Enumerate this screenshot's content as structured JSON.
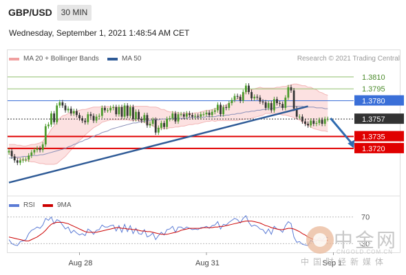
{
  "header": {
    "symbol": "GBP/USD",
    "timeframe": "30 MIN"
  },
  "datetime": "Wednesday, September 1, 2021 1:48:54 AM CET",
  "credit": "Research © 2021 Trading Central",
  "legend": {
    "bb": {
      "label": "MA 20 + Bollinger Bands",
      "color": "#f0a0a0"
    },
    "ma50": {
      "label": "MA 50",
      "color": "#2e5a96"
    },
    "rsi": {
      "label": "RSI",
      "color": "#5b7bd5"
    },
    "ma9": {
      "label": "9MA",
      "color": "#cc0000"
    }
  },
  "watermark": {
    "name": "中金网",
    "url": "CNGOLD.COM.CN",
    "sub": "中国财经新媒体"
  },
  "chart_data": [
    {
      "type": "candlestick",
      "instrument": "GBP/USD",
      "timeframe": "30 MIN",
      "ylim": [
        1.3668,
        1.3822
      ],
      "levels": [
        {
          "value": 1.381,
          "label": "1.3810",
          "style": "resistance",
          "color": "#8fbf6a"
        },
        {
          "value": 1.3795,
          "label": "1.3795",
          "style": "resistance",
          "color": "#8fbf6a"
        },
        {
          "value": 1.378,
          "label": "1.3780",
          "style": "pivot",
          "color": "#3a6fd8"
        },
        {
          "value": 1.3757,
          "label": "1.3757",
          "style": "last",
          "color": "#333333"
        },
        {
          "value": 1.3735,
          "label": "1.3735",
          "style": "support",
          "color": "#e00000"
        },
        {
          "value": 1.372,
          "label": "1.3720",
          "style": "support",
          "color": "#e00000"
        }
      ],
      "x_ticks": [
        {
          "index": 25,
          "label": "Aug 28"
        },
        {
          "index": 70,
          "label": "Aug 31"
        },
        {
          "index": 115,
          "label": "Sep 1"
        }
      ],
      "trendline": {
        "from": [
          0,
          1.3677
        ],
        "to": [
          106,
          1.3773
        ]
      },
      "forecast_arrow": {
        "from": [
          114,
          1.3758
        ],
        "to": [
          122,
          1.3722
        ]
      },
      "close": [
        1.3717,
        1.371,
        1.3705,
        1.3702,
        1.3705,
        1.3706,
        1.3706,
        1.3711,
        1.3715,
        1.3718,
        1.372,
        1.3718,
        1.3725,
        1.3748,
        1.375,
        1.3764,
        1.3753,
        1.3774,
        1.3778,
        1.3774,
        1.3768,
        1.377,
        1.3764,
        1.3767,
        1.3762,
        1.3758,
        1.3755,
        1.3753,
        1.3763,
        1.3761,
        1.3755,
        1.376,
        1.3761,
        1.3771,
        1.3768,
        1.3768,
        1.3771,
        1.3772,
        1.3763,
        1.3772,
        1.376,
        1.3774,
        1.3761,
        1.3772,
        1.3757,
        1.3766,
        1.3757,
        1.3755,
        1.3762,
        1.3749,
        1.3751,
        1.3756,
        1.374,
        1.3746,
        1.3752,
        1.3747,
        1.3757,
        1.3758,
        1.3764,
        1.3754,
        1.3763,
        1.3763,
        1.376,
        1.3764,
        1.3762,
        1.376,
        1.3761,
        1.376,
        1.3763,
        1.3763,
        1.3765,
        1.3762,
        1.3766,
        1.3768,
        1.3775,
        1.3763,
        1.3772,
        1.3771,
        1.3777,
        1.3781,
        1.3786,
        1.3785,
        1.378,
        1.3791,
        1.3799,
        1.3791,
        1.3783,
        1.3785,
        1.3784,
        1.3779,
        1.3778,
        1.3771,
        1.3777,
        1.3768,
        1.3782,
        1.3777,
        1.3776,
        1.3771,
        1.3784,
        1.3797,
        1.3793,
        1.377,
        1.376,
        1.376,
        1.3754,
        1.3751,
        1.3749,
        1.3755,
        1.3751,
        1.3752,
        1.3756,
        1.3751,
        1.3757,
        1.3757
      ],
      "ma20": [
        1.3719,
        1.3718,
        1.3717,
        1.3716,
        1.3715,
        1.3714,
        1.3714,
        1.3714,
        1.3714,
        1.3714,
        1.3714,
        1.3714,
        1.3715,
        1.3717,
        1.3719,
        1.3722,
        1.3724,
        1.3727,
        1.3731,
        1.3734,
        1.3736,
        1.3739,
        1.3742,
        1.3744,
        1.3747,
        1.3749,
        1.3751,
        1.3753,
        1.3755,
        1.3757,
        1.3759,
        1.376,
        1.3761,
        1.3763,
        1.3763,
        1.3764,
        1.3764,
        1.3764,
        1.3764,
        1.3764,
        1.3764,
        1.3764,
        1.3764,
        1.3764,
        1.3764,
        1.3764,
        1.3764,
        1.3763,
        1.3763,
        1.3762,
        1.3761,
        1.376,
        1.3759,
        1.3758,
        1.3757,
        1.3757,
        1.3756,
        1.3756,
        1.3756,
        1.3756,
        1.3756,
        1.3756,
        1.3756,
        1.3757,
        1.3757,
        1.3757,
        1.3758,
        1.3758,
        1.3759,
        1.376,
        1.3761,
        1.3761,
        1.3762,
        1.3762,
        1.3763,
        1.3764,
        1.3764,
        1.3765,
        1.3766,
        1.3767,
        1.3768,
        1.3769,
        1.3771,
        1.3772,
        1.3774,
        1.3775,
        1.3776,
        1.3777,
        1.3778,
        1.3779,
        1.3779,
        1.378,
        1.378,
        1.378,
        1.378,
        1.378,
        1.378,
        1.378,
        1.378,
        1.378,
        1.378,
        1.378,
        1.3779,
        1.3778,
        1.3776,
        1.3775,
        1.3773,
        1.3772,
        1.377,
        1.3769,
        1.3767,
        1.3766,
        1.3765,
        1.3764
      ],
      "bb_width": [
        0.0006,
        0.0007,
        0.0008,
        0.0008,
        0.0009,
        0.0009,
        0.0009,
        0.001,
        0.0011,
        0.0011,
        0.0012,
        0.0013,
        0.0014,
        0.0017,
        0.0019,
        0.0022,
        0.0024,
        0.0026,
        0.0027,
        0.0027,
        0.0026,
        0.0025,
        0.0024,
        0.0022,
        0.002,
        0.0019,
        0.0018,
        0.0016,
        0.0015,
        0.0014,
        0.0013,
        0.0012,
        0.0011,
        0.001,
        0.0009,
        0.0009,
        0.0008,
        0.0008,
        0.0008,
        0.0008,
        0.0008,
        0.0008,
        0.0008,
        0.0009,
        0.0009,
        0.0009,
        0.0009,
        0.001,
        0.001,
        0.0011,
        0.0011,
        0.0012,
        0.0013,
        0.0013,
        0.0012,
        0.0012,
        0.0011,
        0.001,
        0.001,
        0.0009,
        0.0009,
        0.0008,
        0.0008,
        0.0008,
        0.0007,
        0.0007,
        0.0007,
        0.0007,
        0.0007,
        0.0007,
        0.0007,
        0.0007,
        0.0007,
        0.0008,
        0.0008,
        0.0009,
        0.0009,
        0.001,
        0.0011,
        0.0012,
        0.0013,
        0.0014,
        0.0015,
        0.0016,
        0.0017,
        0.0018,
        0.0018,
        0.0018,
        0.0018,
        0.0018,
        0.0017,
        0.0016,
        0.0016,
        0.0016,
        0.0016,
        0.0017,
        0.0017,
        0.0018,
        0.0018,
        0.0019,
        0.002,
        0.0021,
        0.0022,
        0.0022,
        0.0023,
        0.0024,
        0.0024,
        0.0025,
        0.0025,
        0.0025,
        0.0024,
        0.0024,
        0.0023,
        0.0023
      ],
      "ma50": [
        1.3708,
        1.3708,
        1.3709,
        1.3709,
        1.3709,
        1.371,
        1.371,
        1.371,
        1.3711,
        1.3711,
        1.3711,
        1.3712,
        1.3712,
        1.3713,
        1.3714,
        1.3715,
        1.3716,
        1.3717,
        1.3718,
        1.3719,
        1.372,
        1.3722,
        1.3723,
        1.3725,
        1.3726,
        1.3728,
        1.3729,
        1.3731,
        1.3732,
        1.3734,
        1.3735,
        1.3737,
        1.3738,
        1.374,
        1.3741,
        1.3742,
        1.3744,
        1.3745,
        1.3746,
        1.3747,
        1.3748,
        1.3749,
        1.375,
        1.3751,
        1.3752,
        1.3752,
        1.3753,
        1.3754,
        1.3754,
        1.3755,
        1.3755,
        1.3756,
        1.3756,
        1.3756,
        1.3757,
        1.3757,
        1.3757,
        1.3757,
        1.3758,
        1.3758,
        1.3758,
        1.3758,
        1.3758,
        1.3758,
        1.3759,
        1.3759,
        1.3759,
        1.3759,
        1.3759,
        1.3759,
        1.376,
        1.376,
        1.376,
        1.376,
        1.3761,
        1.3761,
        1.3761,
        1.3762,
        1.3762,
        1.3763,
        1.3763,
        1.3764,
        1.3764,
        1.3765,
        1.3766,
        1.3766,
        1.3767,
        1.3767,
        1.3768,
        1.3768,
        1.3769,
        1.3769,
        1.377,
        1.377,
        1.3771,
        1.3771,
        1.3772,
        1.3772,
        1.3772,
        1.3773,
        1.3773,
        1.3773,
        1.3773,
        1.3773,
        1.3773,
        1.3772,
        1.3772,
        1.3772,
        1.3772,
        1.3771,
        1.3771,
        1.3771,
        1.377,
        1.377
      ]
    },
    {
      "type": "line",
      "title": "RSI",
      "ylim": [
        20,
        80
      ],
      "ticks": [
        {
          "value": 70,
          "label": "70"
        },
        {
          "value": 30,
          "label": "30"
        }
      ],
      "series": [
        {
          "name": "RSI",
          "color": "#5b7bd5",
          "values": [
            36,
            30,
            28,
            27,
            33,
            34,
            36,
            45,
            50,
            52,
            55,
            53,
            58,
            68,
            65,
            70,
            60,
            66,
            64,
            58,
            52,
            55,
            46,
            50,
            46,
            43,
            45,
            42,
            52,
            49,
            44,
            50,
            51,
            58,
            55,
            55,
            57,
            58,
            49,
            57,
            47,
            59,
            48,
            57,
            45,
            53,
            45,
            44,
            51,
            40,
            42,
            46,
            36,
            42,
            47,
            43,
            51,
            52,
            56,
            47,
            55,
            55,
            52,
            55,
            53,
            51,
            52,
            51,
            54,
            54,
            56,
            53,
            57,
            58,
            63,
            52,
            59,
            58,
            62,
            65,
            68,
            66,
            61,
            68,
            72,
            62,
            56,
            58,
            56,
            52,
            51,
            45,
            52,
            44,
            56,
            52,
            51,
            47,
            57,
            63,
            60,
            40,
            32,
            33,
            29,
            28,
            27,
            35,
            32,
            34,
            39,
            35,
            40,
            39
          ]
        },
        {
          "name": "9MA",
          "color": "#cc0000",
          "values": [
            40,
            39,
            38,
            37,
            36,
            35,
            34,
            34,
            36,
            38,
            40,
            43,
            46,
            50,
            55,
            59,
            61,
            62,
            62,
            62,
            61,
            60,
            58,
            56,
            54,
            52,
            50,
            48,
            47,
            47,
            47,
            47,
            48,
            49,
            50,
            51,
            52,
            53,
            54,
            54,
            53,
            53,
            52,
            52,
            51,
            51,
            50,
            49,
            49,
            48,
            48,
            47,
            46,
            45,
            44,
            44,
            44,
            45,
            46,
            47,
            48,
            50,
            51,
            52,
            53,
            53,
            53,
            53,
            53,
            54,
            54,
            54,
            54,
            55,
            55,
            56,
            56,
            57,
            58,
            59,
            60,
            61,
            62,
            63,
            64,
            64,
            64,
            63,
            62,
            61,
            59,
            57,
            56,
            54,
            53,
            52,
            51,
            51,
            52,
            53,
            53,
            52,
            50,
            48,
            45,
            43,
            40,
            38,
            36,
            35,
            35,
            34,
            34,
            35
          ]
        }
      ]
    }
  ]
}
